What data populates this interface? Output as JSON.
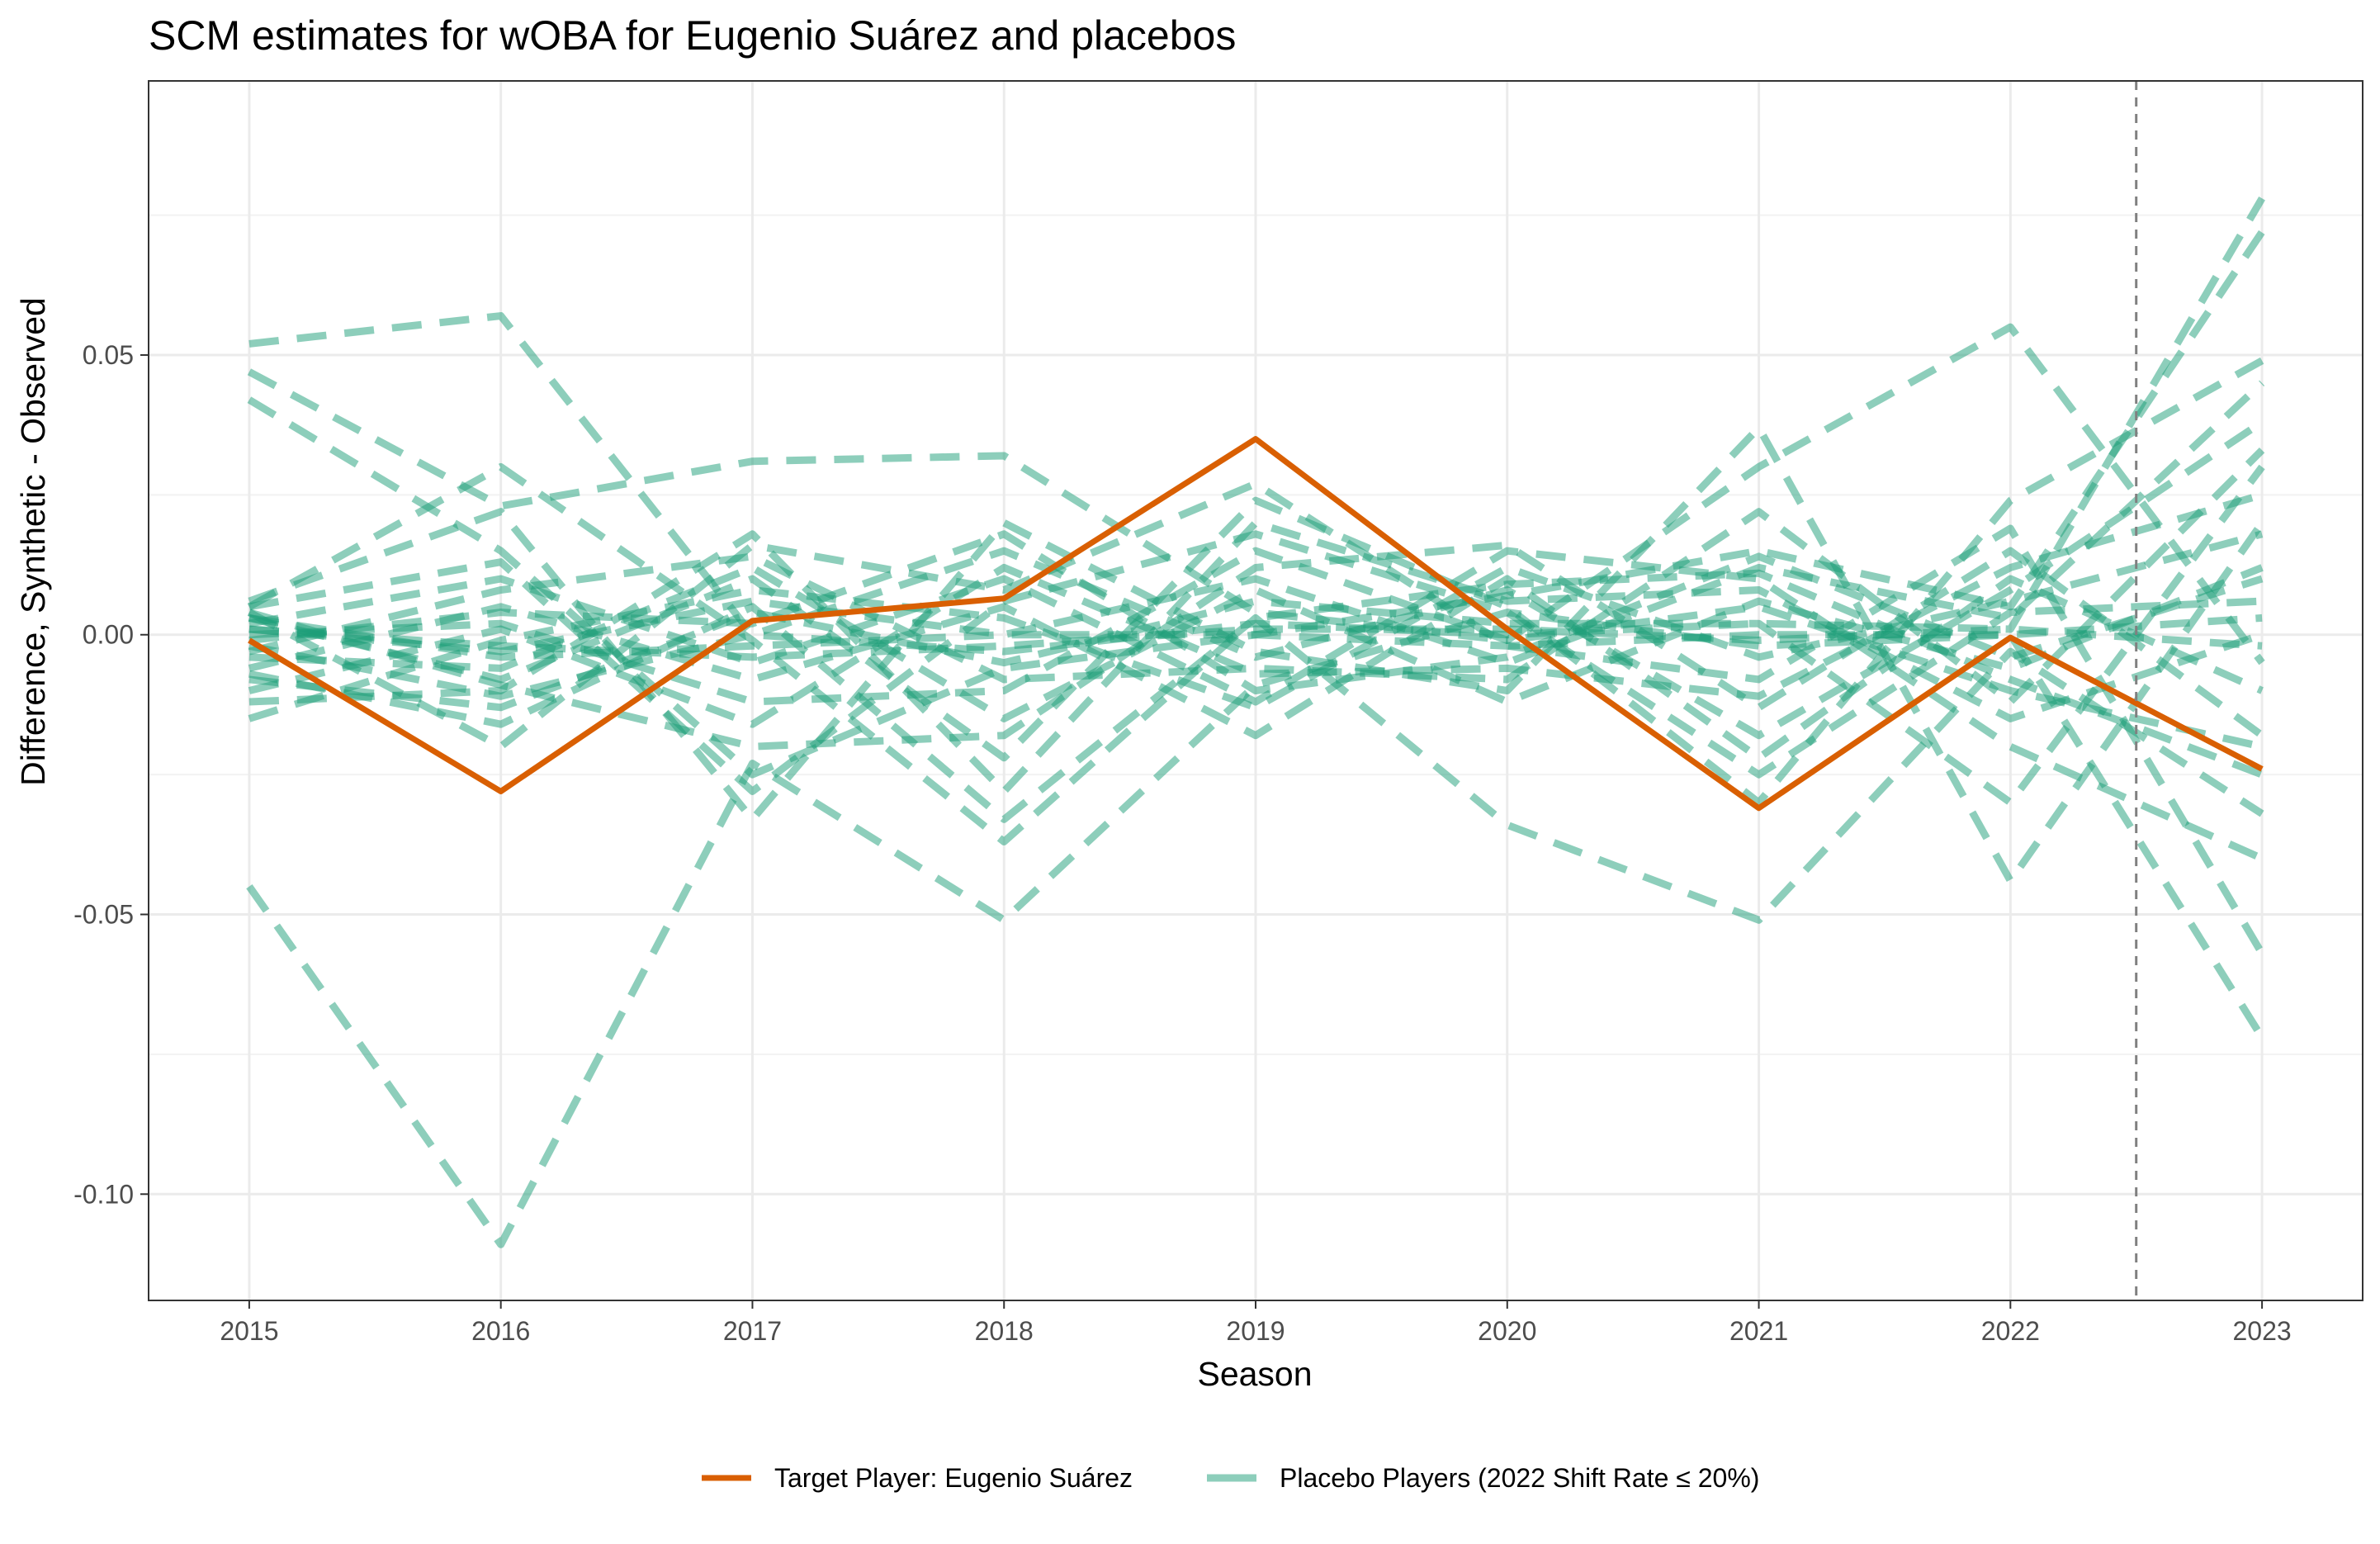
{
  "chart_data": {
    "type": "line",
    "title": "SCM estimates for wOBA for Eugenio Suárez and placebos",
    "xlabel": "Season",
    "ylabel": "Difference, Synthetic - Observed",
    "x": [
      2015,
      2016,
      2017,
      2018,
      2019,
      2020,
      2021,
      2022,
      2023
    ],
    "x_ticks": [
      "2015",
      "2016",
      "2017",
      "2018",
      "2019",
      "2020",
      "2021",
      "2022",
      "2023"
    ],
    "y_ticks": [
      "0.05",
      "0.00",
      "-0.05",
      "-0.10"
    ],
    "xlim": [
      2014.6,
      2023.4
    ],
    "ylim": [
      -0.119,
      0.099
    ],
    "treatment_marker_x": 2022.5,
    "grid": true,
    "legend_position": "bottom",
    "colors": {
      "target": "#D95F02",
      "placebo": "#1B9E77",
      "vline": "#808080"
    },
    "legend": [
      {
        "label": "Target Player: Eugenio Suárez",
        "kind": "target"
      },
      {
        "label": "Placebo Players (2022 Shift Rate ≤ 20%)",
        "kind": "placebo"
      }
    ],
    "target_series": {
      "name": "Target Player: Eugenio Suárez",
      "values": [
        -0.001,
        -0.028,
        0.0025,
        0.0065,
        0.035,
        0.001,
        -0.031,
        -0.0005,
        -0.024
      ]
    },
    "placebo_series": [
      [
        0.052,
        0.057,
        0.0,
        -0.003,
        0.002,
        0.0,
        0.002,
        0.001,
        0.078
      ],
      [
        0.047,
        0.023,
        0.031,
        0.032,
        0.004,
        -0.001,
        0.03,
        0.055,
        -0.005
      ],
      [
        0.042,
        0.015,
        -0.025,
        -0.006,
        0.0,
        0.007,
        0.015,
        0.005,
        0.072
      ],
      [
        -0.045,
        -0.109,
        -0.023,
        -0.051,
        -0.009,
        0.004,
        -0.002,
        0.0,
        -0.072
      ],
      [
        0.005,
        0.03,
        -0.001,
        -0.037,
        0.003,
        -0.034,
        -0.051,
        -0.003,
        -0.032
      ],
      [
        0.006,
        0.022,
        -0.033,
        0.02,
        -0.003,
        -0.01,
        0.037,
        -0.044,
        0.02
      ],
      [
        0.004,
        -0.02,
        0.016,
        0.008,
        0.027,
        -0.002,
        -0.008,
        0.019,
        -0.057
      ],
      [
        0.003,
        -0.008,
        0.01,
        -0.022,
        0.024,
        0.005,
        -0.03,
        0.024,
        0.049
      ],
      [
        0.002,
        0.01,
        -0.005,
        0.01,
        -0.012,
        0.015,
        0.01,
        -0.02,
        -0.04
      ],
      [
        0.001,
        -0.003,
        0.006,
        0.0,
        0.01,
        -0.005,
        0.012,
        0.003,
        0.045
      ],
      [
        0.0,
        0.002,
        -0.012,
        -0.01,
        0.015,
        -0.001,
        0.005,
        -0.01,
        -0.02
      ],
      [
        -0.002,
        -0.011,
        0.0,
        0.015,
        -0.004,
        0.008,
        -0.018,
        0.008,
        0.038
      ],
      [
        -0.004,
        -0.006,
        0.012,
        -0.015,
        0.008,
        -0.012,
        0.006,
        -0.006,
        0.012
      ],
      [
        -0.006,
        0.005,
        -0.008,
        0.005,
        -0.018,
        0.01,
        -0.022,
        0.01,
        -0.01
      ],
      [
        -0.008,
        -0.013,
        0.004,
        -0.005,
        0.006,
        0.002,
        0.002,
        -0.03,
        0.03
      ],
      [
        -0.01,
        0.001,
        -0.016,
        0.012,
        -0.007,
        -0.006,
        -0.011,
        0.012,
        0.025
      ],
      [
        -0.012,
        -0.01,
        0.018,
        -0.028,
        0.02,
        0.006,
        0.008,
        -0.015,
        0.0
      ],
      [
        -0.015,
        -0.001,
        0.008,
        0.003,
        -0.013,
        0.012,
        -0.004,
        0.006,
        0.018
      ],
      [
        0.003,
        -0.004,
        -0.002,
        0.0,
        0.0,
        -0.002,
        0.0,
        0.0,
        0.003
      ],
      [
        0.001,
        -0.002,
        -0.004,
        -0.002,
        0.001,
        0.001,
        -0.001,
        0.001,
        -0.002
      ],
      [
        -0.001,
        0.004,
        0.002,
        0.018,
        -0.01,
        -0.004,
        0.014,
        -0.004,
        0.01
      ],
      [
        0.004,
        -0.009,
        -0.02,
        -0.018,
        0.012,
        0.016,
        -0.013,
        0.015,
        -0.018
      ],
      [
        -0.003,
        0.008,
        0.014,
        -0.008,
        -0.006,
        -0.008,
        0.022,
        -0.012,
        0.033
      ],
      [
        0.005,
        0.013,
        -0.028,
        0.006,
        0.018,
        0.004,
        -0.025,
        0.004,
        0.006
      ],
      [
        -0.007,
        -0.016,
        0.005,
        -0.033,
        0.003,
        0.009,
        0.011,
        -0.008,
        -0.025
      ]
    ]
  }
}
